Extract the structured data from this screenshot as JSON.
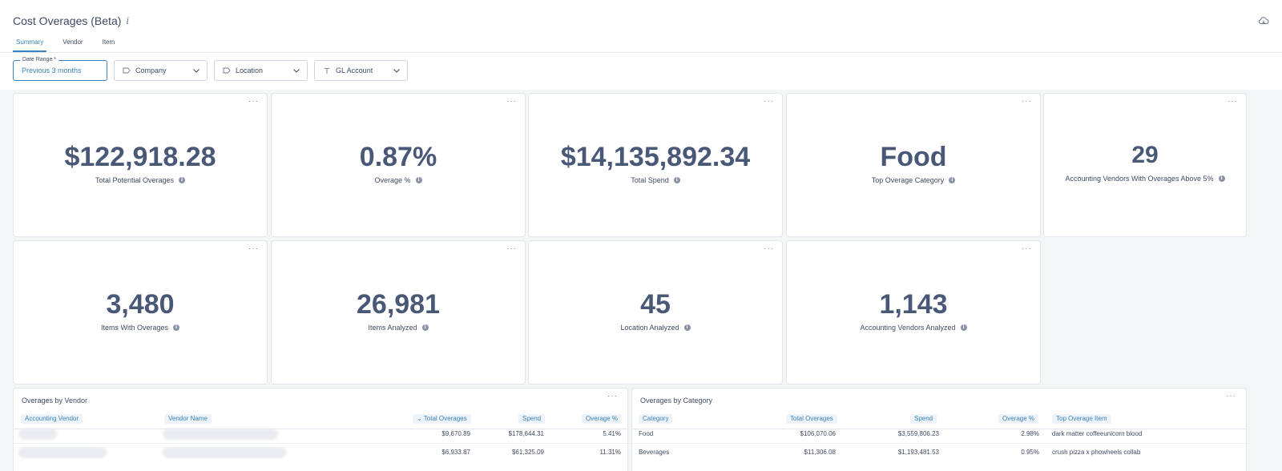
{
  "header": {
    "title": "Cost Overages (Beta)",
    "info_glyph": "i",
    "tabs": [
      {
        "label": "Summary",
        "active": true
      },
      {
        "label": "Vendor",
        "active": false
      },
      {
        "label": "Item",
        "active": false
      }
    ]
  },
  "filters": {
    "date_range": {
      "label": "Date Range *",
      "value": "Previous 3 months"
    },
    "company": {
      "label": "Company",
      "icon": "tag-icon"
    },
    "location": {
      "label": "Location",
      "icon": "tag-icon"
    },
    "gl_account": {
      "label": "GL Account",
      "icon": "text-icon"
    }
  },
  "metrics": [
    {
      "value": "$122,918.28",
      "label": "Total Potential Overages"
    },
    {
      "value": "0.87%",
      "label": "Overage %"
    },
    {
      "value": "$14,135,892.34",
      "label": "Total Spend"
    },
    {
      "value": "Food",
      "label": "Top Overage Category"
    },
    {
      "value": "29",
      "label": "Accounting Vendors With Overages Above 5%"
    },
    {
      "value": "3,480",
      "label": "Items With Overages"
    },
    {
      "value": "26,981",
      "label": "Items Analyzed"
    },
    {
      "value": "45",
      "label": "Location Analyzed"
    },
    {
      "value": "1,143",
      "label": "Accounting Vendors Analyzed"
    }
  ],
  "menu_dots": "···",
  "vendor_table": {
    "title": "Overages by Vendor",
    "columns": [
      "Accounting Vendor",
      "Vendor Name",
      "Total Overages",
      "Spend",
      "Overage %"
    ],
    "sort_indicator": "⌄",
    "rows": [
      {
        "total_overages": "$9,670.89",
        "spend": "$178,644.31",
        "overage_pct": "5.41%"
      },
      {
        "total_overages": "$6,933.87",
        "spend": "$61,325.09",
        "overage_pct": "11.31%"
      }
    ]
  },
  "category_table": {
    "title": "Overages by Category",
    "columns": [
      "Category",
      "Total Overages",
      "Spend",
      "Overage %",
      "Top Overage Item"
    ],
    "rows": [
      {
        "category": "Food",
        "total_overages": "$106,070.06",
        "spend": "$3,559,806.23",
        "overage_pct": "2.98%",
        "top_item": "dark matter coffeeunicorn blood"
      },
      {
        "category": "Beverages",
        "total_overages": "$11,306.08",
        "spend": "$1,193,481.53",
        "overage_pct": "0.95%",
        "top_item": "crush pizza x phowheels collab"
      }
    ]
  }
}
